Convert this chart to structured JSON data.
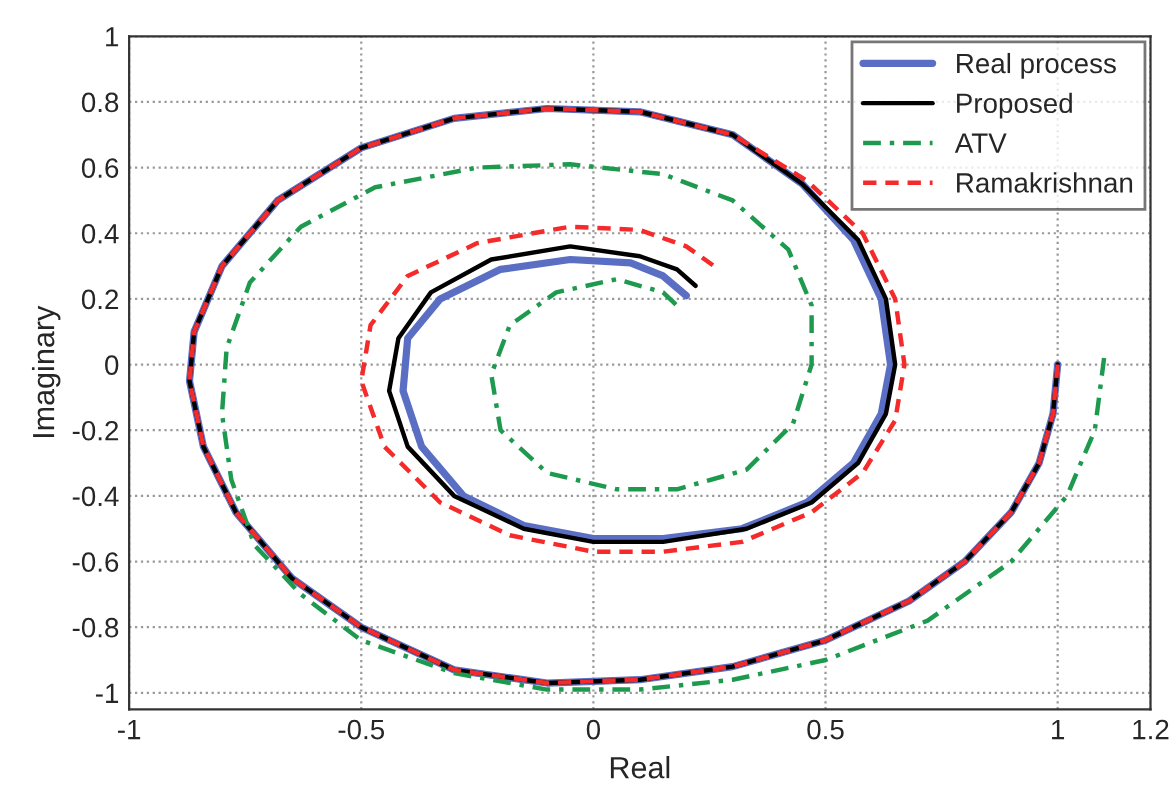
{
  "chart_data": {
    "type": "line",
    "xlabel": "Real",
    "ylabel": "Imaginary",
    "xlim": [
      -1,
      1.2
    ],
    "ylim": [
      -1.05,
      1
    ],
    "xticks": [
      -1,
      -0.5,
      0,
      0.5,
      1,
      1.2
    ],
    "yticks": [
      -1,
      -0.8,
      -0.6,
      -0.4,
      -0.2,
      0,
      0.2,
      0.4,
      0.6,
      0.8,
      1
    ],
    "grid": true,
    "legend": "top right",
    "marker": "none",
    "series": [
      {
        "name": "Real process",
        "color": "#5a6fc4",
        "line_style": "solid",
        "x": [
          1.0,
          0.99,
          0.96,
          0.9,
          0.8,
          0.68,
          0.5,
          0.3,
          0.1,
          -0.1,
          -0.3,
          -0.5,
          -0.65,
          -0.77,
          -0.84,
          -0.87,
          -0.86,
          -0.8,
          -0.68,
          -0.5,
          -0.3,
          -0.1,
          0.1,
          0.3,
          0.45,
          0.56,
          0.62,
          0.64,
          0.62,
          0.56,
          0.46,
          0.32,
          0.15,
          0,
          -0.15,
          -0.28,
          -0.37,
          -0.41,
          -0.4,
          -0.33,
          -0.2,
          -0.05,
          0.08,
          0.15,
          0.2
        ],
        "values": [
          0,
          -0.15,
          -0.3,
          -0.45,
          -0.6,
          -0.72,
          -0.84,
          -0.92,
          -0.96,
          -0.97,
          -0.93,
          -0.8,
          -0.65,
          -0.45,
          -0.25,
          -0.05,
          0.1,
          0.3,
          0.5,
          0.66,
          0.75,
          0.78,
          0.77,
          0.7,
          0.55,
          0.38,
          0.2,
          0,
          -0.15,
          -0.3,
          -0.42,
          -0.5,
          -0.53,
          -0.53,
          -0.49,
          -0.4,
          -0.25,
          -0.08,
          0.08,
          0.2,
          0.29,
          0.32,
          0.31,
          0.27,
          0.21
        ]
      },
      {
        "name": "Proposed",
        "color": "#000000",
        "line_style": "solid",
        "x": [
          1.0,
          0.99,
          0.96,
          0.9,
          0.8,
          0.68,
          0.5,
          0.3,
          0.1,
          -0.1,
          -0.3,
          -0.5,
          -0.65,
          -0.77,
          -0.84,
          -0.87,
          -0.86,
          -0.8,
          -0.68,
          -0.5,
          -0.3,
          -0.1,
          0.1,
          0.3,
          0.45,
          0.57,
          0.63,
          0.65,
          0.63,
          0.57,
          0.47,
          0.33,
          0.15,
          0,
          -0.15,
          -0.3,
          -0.4,
          -0.44,
          -0.42,
          -0.35,
          -0.22,
          -0.05,
          0.1,
          0.18,
          0.22
        ],
        "values": [
          0,
          -0.15,
          -0.3,
          -0.45,
          -0.6,
          -0.72,
          -0.84,
          -0.92,
          -0.96,
          -0.97,
          -0.93,
          -0.8,
          -0.65,
          -0.45,
          -0.25,
          -0.05,
          0.1,
          0.3,
          0.5,
          0.66,
          0.75,
          0.78,
          0.77,
          0.7,
          0.55,
          0.38,
          0.2,
          0,
          -0.15,
          -0.3,
          -0.42,
          -0.5,
          -0.54,
          -0.54,
          -0.5,
          -0.4,
          -0.25,
          -0.08,
          0.08,
          0.22,
          0.32,
          0.36,
          0.33,
          0.29,
          0.24
        ]
      },
      {
        "name": "ATV",
        "color": "#1e9a4e",
        "line_style": "dashdot",
        "x": [
          1.1,
          1.08,
          1.02,
          0.9,
          0.72,
          0.5,
          0.3,
          0.1,
          -0.1,
          -0.3,
          -0.5,
          -0.63,
          -0.73,
          -0.78,
          -0.8,
          -0.79,
          -0.74,
          -0.63,
          -0.47,
          -0.25,
          -0.05,
          0.15,
          0.3,
          0.42,
          0.47,
          0.47,
          0.43,
          0.33,
          0.18,
          0.05,
          -0.1,
          -0.2,
          -0.22,
          -0.18,
          -0.08,
          0.05,
          0.15,
          0.18
        ],
        "values": [
          0.02,
          -0.2,
          -0.4,
          -0.6,
          -0.78,
          -0.9,
          -0.96,
          -0.99,
          -0.99,
          -0.94,
          -0.84,
          -0.7,
          -0.55,
          -0.35,
          -0.15,
          0.05,
          0.25,
          0.42,
          0.54,
          0.6,
          0.61,
          0.58,
          0.5,
          0.35,
          0.18,
          0,
          -0.18,
          -0.32,
          -0.38,
          -0.38,
          -0.33,
          -0.2,
          -0.03,
          0.12,
          0.22,
          0.26,
          0.22,
          0.18
        ]
      },
      {
        "name": "Ramakrishnan",
        "color": "#f52a2a",
        "line_style": "dashed",
        "x": [
          1.0,
          0.99,
          0.96,
          0.9,
          0.8,
          0.68,
          0.5,
          0.3,
          0.1,
          -0.1,
          -0.3,
          -0.5,
          -0.65,
          -0.77,
          -0.84,
          -0.87,
          -0.86,
          -0.8,
          -0.68,
          -0.5,
          -0.3,
          -0.1,
          0.1,
          0.3,
          0.46,
          0.58,
          0.65,
          0.67,
          0.65,
          0.58,
          0.47,
          0.32,
          0.15,
          0,
          -0.18,
          -0.33,
          -0.45,
          -0.5,
          -0.48,
          -0.4,
          -0.25,
          -0.05,
          0.1,
          0.2,
          0.27
        ],
        "values": [
          0,
          -0.15,
          -0.3,
          -0.45,
          -0.6,
          -0.72,
          -0.84,
          -0.92,
          -0.96,
          -0.97,
          -0.93,
          -0.8,
          -0.65,
          -0.45,
          -0.25,
          -0.05,
          0.1,
          0.3,
          0.5,
          0.66,
          0.75,
          0.78,
          0.77,
          0.7,
          0.56,
          0.4,
          0.2,
          0,
          -0.17,
          -0.33,
          -0.45,
          -0.54,
          -0.57,
          -0.57,
          -0.52,
          -0.42,
          -0.25,
          -0.05,
          0.12,
          0.27,
          0.37,
          0.42,
          0.41,
          0.36,
          0.29
        ]
      }
    ]
  }
}
